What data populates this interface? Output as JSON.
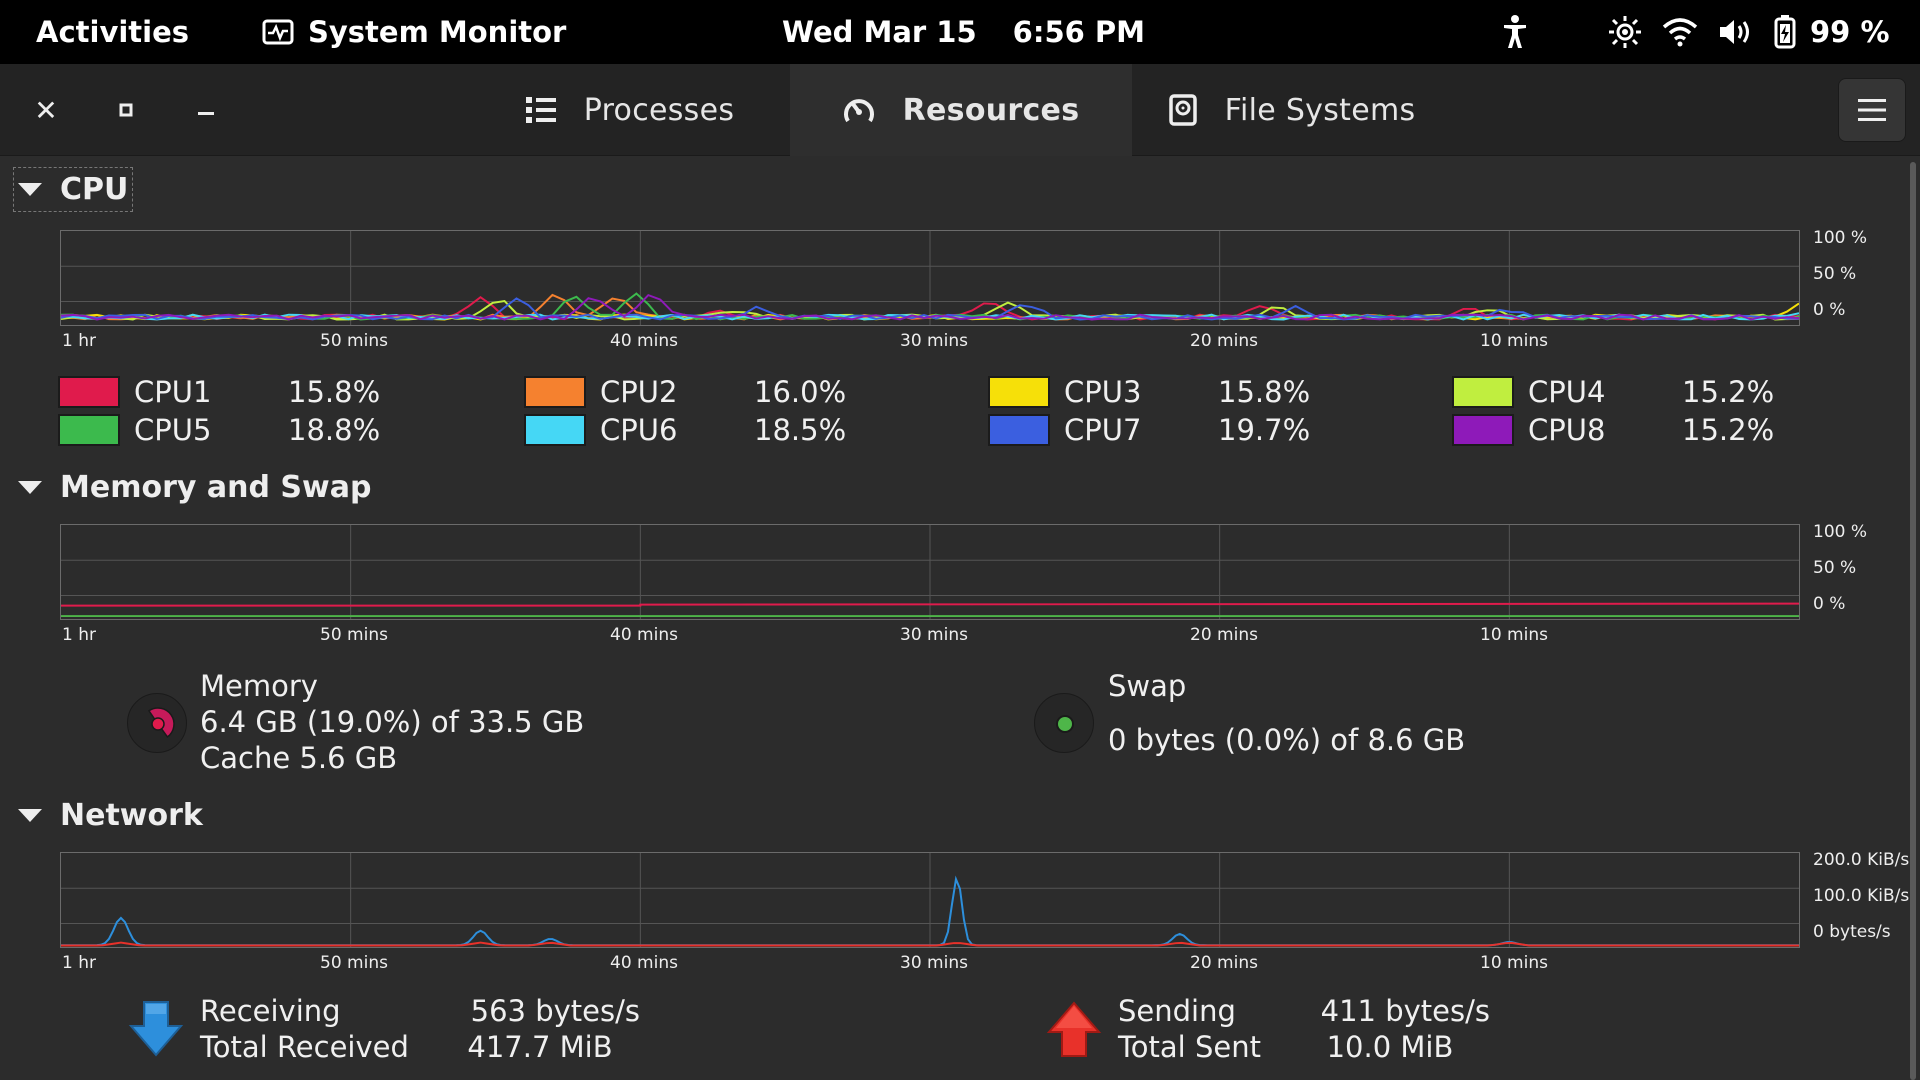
{
  "topbar": {
    "activities": "Activities",
    "app_name": "System Monitor",
    "date": "Wed Mar 15",
    "time": "6:56 PM",
    "battery": "99 %",
    "icons": [
      "accessibility-icon",
      "brightness-icon",
      "wifi-icon",
      "volume-icon",
      "battery-icon"
    ]
  },
  "header": {
    "close": "✕",
    "maximize": "▫",
    "minimize": "–",
    "tabs": [
      {
        "label": "Processes",
        "icon": "list-icon",
        "active": false
      },
      {
        "label": "Resources",
        "icon": "gauge-icon",
        "active": true
      },
      {
        "label": "File Systems",
        "icon": "drive-icon",
        "active": false
      }
    ],
    "menu_icon": "hamburger-icon"
  },
  "cpu": {
    "title": "CPU",
    "y_ticks": [
      "100 %",
      "50 %",
      "0 %"
    ],
    "x_ticks": [
      "1 hr",
      "50 mins",
      "40 mins",
      "30 mins",
      "20 mins",
      "10 mins"
    ],
    "cores": [
      {
        "name": "CPU1",
        "value": "15.8%",
        "color": "#e01b4c"
      },
      {
        "name": "CPU2",
        "value": "16.0%",
        "color": "#f5812f"
      },
      {
        "name": "CPU3",
        "value": "15.8%",
        "color": "#f6e009"
      },
      {
        "name": "CPU4",
        "value": "15.2%",
        "color": "#c0ee3f"
      },
      {
        "name": "CPU5",
        "value": "18.8%",
        "color": "#3cba4d"
      },
      {
        "name": "CPU6",
        "value": "18.5%",
        "color": "#45d7f5"
      },
      {
        "name": "CPU7",
        "value": "19.7%",
        "color": "#3b5fe0"
      },
      {
        "name": "CPU8",
        "value": "15.2%",
        "color": "#8e1ab9"
      }
    ]
  },
  "memory": {
    "title": "Memory and Swap",
    "y_ticks": [
      "100 %",
      "50 %",
      "0 %"
    ],
    "x_ticks": [
      "1 hr",
      "50 mins",
      "40 mins",
      "30 mins",
      "20 mins",
      "10 mins"
    ],
    "memory_label": "Memory",
    "memory_usage": "6.4 GB (19.0%) of 33.5 GB",
    "cache": "Cache 5.6 GB",
    "memory_fraction": 0.19,
    "memory_color": "#e01b4c",
    "swap_label": "Swap",
    "swap_usage": "0 bytes (0.0%) of 8.6 GB",
    "swap_color": "#4eb649"
  },
  "network": {
    "title": "Network",
    "y_ticks": [
      "200.0 KiB/s",
      "100.0 KiB/s",
      "0 bytes/s"
    ],
    "x_ticks": [
      "1 hr",
      "50 mins",
      "40 mins",
      "30 mins",
      "20 mins",
      "10 mins"
    ],
    "receiving_label": "Receiving",
    "receiving_value": "563 bytes/s",
    "total_received_label": "Total Received",
    "total_received_value": "417.7 MiB",
    "sending_label": "Sending",
    "sending_value": "411 bytes/s",
    "total_sent_label": "Total Sent",
    "total_sent_value": "10.0 MiB",
    "receive_color": "#2d8fdc",
    "send_color": "#e8312a"
  }
}
